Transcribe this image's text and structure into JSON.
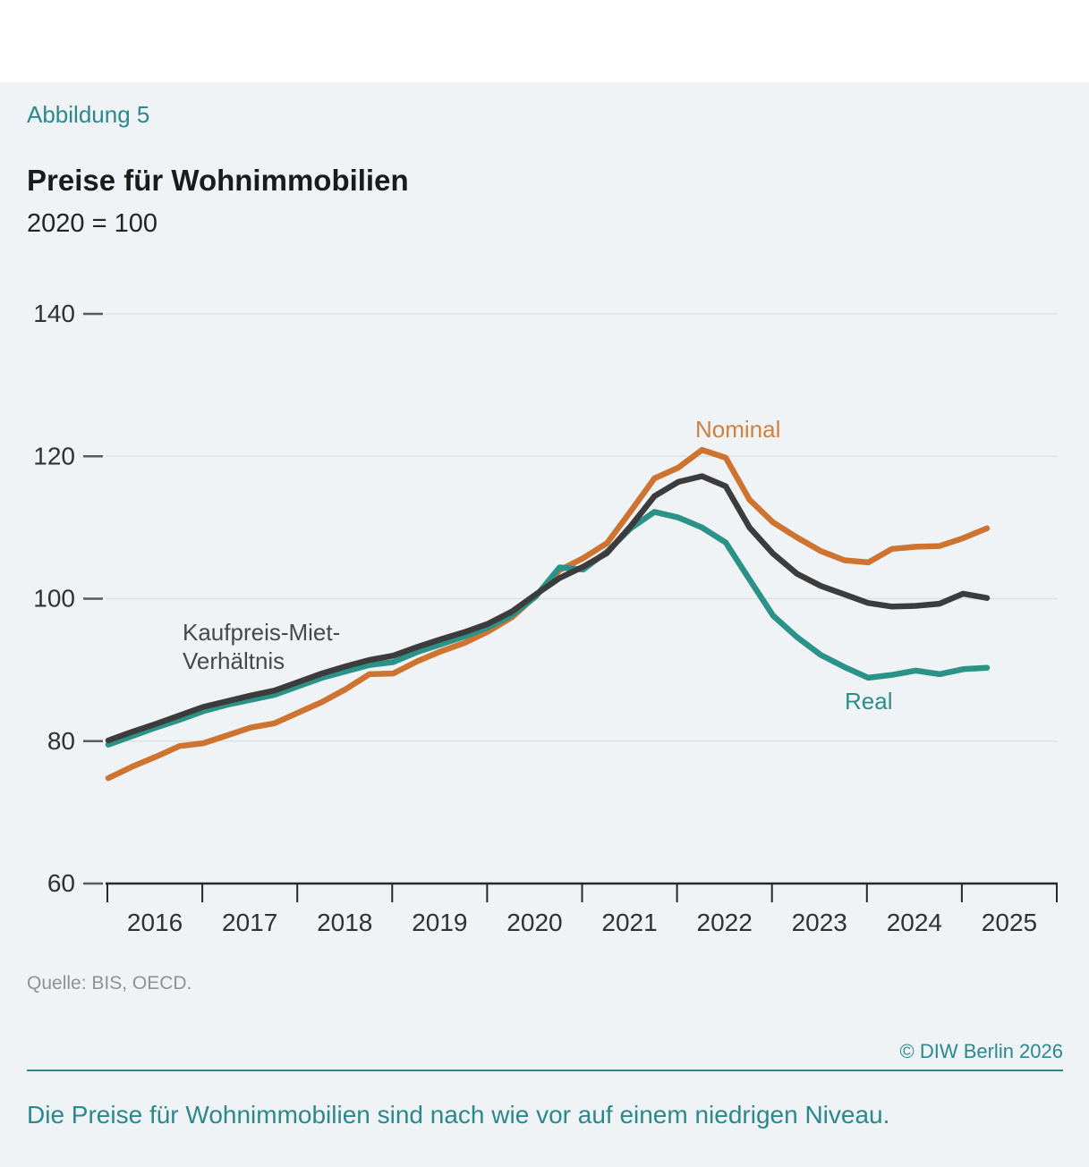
{
  "header": {
    "figure_label": "Abbildung 5",
    "title": "Preise für Wohnimmobilien",
    "subtitle": "2020 = 100"
  },
  "footer": {
    "source": "Quelle: BIS, OECD.",
    "copyright": "© DIW Berlin 2026",
    "caption": "Die Preise für Wohnimmobilien sind nach wie vor auf einem niedrigen Niveau."
  },
  "colors": {
    "accent_teal": "#2b898e",
    "background": "#eff3f5",
    "band_white": "#ffffff",
    "gridline": "#dde2e5",
    "axis": "#26282a",
    "tick": "#555b60",
    "axis_text": "#2f3133",
    "ratio_label_text": "#45494b",
    "line_nominal": "#cf7430",
    "line_real": "#2a9287",
    "line_ratio": "#3c3c3c"
  },
  "chart_data": {
    "type": "line",
    "title": "Preise für Wohnimmobilien",
    "subtitle": "2020 = 100",
    "x_unit": "quarter",
    "grid": "horizontal",
    "legend": "inline-annotations",
    "ylim": [
      60,
      140
    ],
    "yticks": [
      60,
      80,
      100,
      120,
      140
    ],
    "xticks": [
      "2016",
      "2017",
      "2018",
      "2019",
      "2020",
      "2021",
      "2022",
      "2023",
      "2024",
      "2025"
    ],
    "categories": [
      "2016-Q1",
      "2016-Q2",
      "2016-Q3",
      "2016-Q4",
      "2017-Q1",
      "2017-Q2",
      "2017-Q3",
      "2017-Q4",
      "2018-Q1",
      "2018-Q2",
      "2018-Q3",
      "2018-Q4",
      "2019-Q1",
      "2019-Q2",
      "2019-Q3",
      "2019-Q4",
      "2020-Q1",
      "2020-Q2",
      "2020-Q3",
      "2020-Q4",
      "2021-Q1",
      "2021-Q2",
      "2021-Q3",
      "2021-Q4",
      "2022-Q1",
      "2022-Q2",
      "2022-Q3",
      "2022-Q4",
      "2023-Q1",
      "2023-Q2",
      "2023-Q3",
      "2023-Q4",
      "2024-Q1",
      "2024-Q2",
      "2024-Q3",
      "2024-Q4",
      "2025-Q1",
      "2025-Q2"
    ],
    "series": [
      {
        "id": "nominal",
        "name": "Nominal",
        "label_lines": [
          "Nominal"
        ],
        "color": "#cf7430",
        "values": [
          74.8,
          76.4,
          77.8,
          79.3,
          79.7,
          80.8,
          81.9,
          82.5,
          84.0,
          85.5,
          87.3,
          89.4,
          89.5,
          91.2,
          92.6,
          93.8,
          95.4,
          97.4,
          100.4,
          104.0,
          105.7,
          107.8,
          112.3,
          116.9,
          118.4,
          120.9,
          119.8,
          113.9,
          110.7,
          108.6,
          106.7,
          105.4,
          105.1,
          107.0,
          107.3,
          107.4,
          108.5,
          109.9
        ]
      },
      {
        "id": "real",
        "name": "Real",
        "label_lines": [
          "Real"
        ],
        "color": "#2a9287",
        "values": [
          79.5,
          80.7,
          81.9,
          83.0,
          84.2,
          85.1,
          85.8,
          86.5,
          87.7,
          88.9,
          89.8,
          90.7,
          91.1,
          92.5,
          93.6,
          94.7,
          96.0,
          97.7,
          100.3,
          104.4,
          104.1,
          106.6,
          109.9,
          112.2,
          111.4,
          110.0,
          107.9,
          102.7,
          97.6,
          94.6,
          92.1,
          90.4,
          88.9,
          89.3,
          89.9,
          89.4,
          90.1,
          90.3
        ]
      },
      {
        "id": "ratio",
        "name": "Kaufpreis-Miet-Verhältnis",
        "label_lines": [
          "Kaufpreis-Miet-",
          "Verhältnis"
        ],
        "color": "#3c3c3c",
        "values": [
          80.1,
          81.3,
          82.4,
          83.6,
          84.8,
          85.6,
          86.4,
          87.1,
          88.3,
          89.5,
          90.5,
          91.4,
          92.0,
          93.2,
          94.3,
          95.3,
          96.5,
          98.2,
          100.6,
          102.9,
          104.5,
          106.4,
          110.2,
          114.4,
          116.4,
          117.2,
          115.8,
          110.0,
          106.3,
          103.5,
          101.8,
          100.6,
          99.4,
          98.9,
          99.0,
          99.3,
          100.7,
          100.1
        ]
      }
    ]
  }
}
